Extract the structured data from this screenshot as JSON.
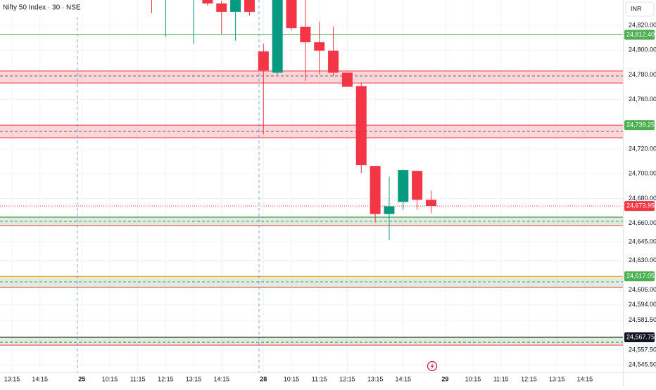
{
  "chart_data": {
    "type": "candlestick",
    "title": "Nifty 50 Index · 30 · NSE",
    "currency": "INR",
    "up_color": "#089981",
    "down_color": "#f23645",
    "ylim": [
      24539.3,
      24840.5
    ],
    "yticks": [
      {
        "value": 24820,
        "label": "24,820.00"
      },
      {
        "value": 24800,
        "label": "24,800.00"
      },
      {
        "value": 24780,
        "label": "24,780.00"
      },
      {
        "value": 24760,
        "label": "24,760.00"
      },
      {
        "value": 24720,
        "label": "24,720.00"
      },
      {
        "value": 24700,
        "label": "24,700.00"
      },
      {
        "value": 24680,
        "label": "24,680.00"
      },
      {
        "value": 24660,
        "label": "24,660.00"
      },
      {
        "value": 24645,
        "label": "24,645.00"
      },
      {
        "value": 24630,
        "label": "24,630.00"
      },
      {
        "value": 24606,
        "label": "24,606.00"
      },
      {
        "value": 24594,
        "label": "24,594.00"
      },
      {
        "value": 24581.5,
        "label": "24,581.50"
      },
      {
        "value": 24557.5,
        "label": "24,557.50"
      },
      {
        "value": 24545.5,
        "label": "24,545.50"
      }
    ],
    "grid": true,
    "categories": [
      "13:15",
      null,
      "14:15",
      null,
      null,
      "25",
      null,
      "10:15",
      null,
      "11:15",
      null,
      "12:15",
      null,
      "13:15",
      null,
      "14:15",
      null,
      null,
      "28",
      null,
      "10:15",
      null,
      "11:15",
      null,
      "12:15",
      null,
      "13:15",
      null,
      "14:15",
      null,
      null,
      "29",
      null,
      "10:15",
      null,
      "11:15",
      null,
      "12:15",
      null,
      "13:15",
      null,
      "14:15",
      null,
      null
    ],
    "open": [
      null,
      null,
      null,
      null,
      null,
      null,
      null,
      null,
      null,
      null,
      24848,
      24845,
      24860,
      24842,
      24845,
      24837.7,
      24830.9,
      24842,
      24798.9,
      24781.7,
      24845,
      24818.9,
      24806.3,
      24799.5,
      24781.7,
      24770.9,
      24706.3,
      24667.4,
      24677.2,
      24702.3,
      24678.9,
      null,
      null,
      null,
      null,
      null,
      null,
      null,
      null,
      null,
      null,
      null,
      null,
      null
    ],
    "high": [
      null,
      null,
      null,
      null,
      null,
      null,
      null,
      null,
      null,
      null,
      24852,
      24855,
      24865,
      24858,
      24850,
      24840,
      24846,
      24848,
      24805,
      24850,
      24850,
      24841,
      24823,
      24819,
      24781.7,
      24773.2,
      24706.3,
      24697.7,
      24703.5,
      24702.3,
      24686.3,
      null,
      null,
      null,
      null,
      null,
      null,
      null,
      null,
      null,
      null,
      null,
      null,
      null
    ],
    "low": [
      null,
      null,
      null,
      null,
      null,
      null,
      null,
      null,
      null,
      null,
      24830,
      24811,
      24845,
      24805,
      24836,
      24813.2,
      24807.5,
      24828,
      24732,
      24780,
      24816,
      24774.9,
      24780.6,
      24778.9,
      24770.3,
      24700.6,
      24660.6,
      24646.3,
      24670.9,
      24670.9,
      24668,
      null,
      null,
      null,
      null,
      null,
      null,
      null,
      null,
      null,
      null,
      null,
      null,
      null
    ],
    "close": [
      null,
      null,
      null,
      null,
      null,
      null,
      null,
      null,
      null,
      null,
      24843,
      24850,
      24855,
      24850,
      24837.7,
      24830.9,
      24842,
      24830.9,
      24783.5,
      24845,
      24817.7,
      24806.3,
      24799.5,
      24781.7,
      24770.3,
      24706.9,
      24667.4,
      24673.7,
      24702.9,
      24678.9,
      24673.95,
      null,
      null,
      null,
      null,
      null,
      null,
      null,
      null,
      null,
      null,
      null,
      null,
      null
    ],
    "zones": [
      {
        "top": 24783.1,
        "bottom": 24773.4,
        "mid": 24779.1,
        "fill": "rgba(242,54,69,0.2)",
        "top_color": "#f23645",
        "bottom_color": "#f23645"
      },
      {
        "top": 24739.25,
        "bottom": 24729.1,
        "mid": 24734.2,
        "fill": "rgba(242,54,69,0.2)",
        "top_color": "#f23645",
        "bottom_color": "#f23645"
      },
      {
        "top": 24664.9,
        "bottom": 24658.1,
        "mid": 24661.5,
        "fill": "rgba(76,175,80,0.2)",
        "top_color": "#2e7d32",
        "bottom_color": "#f23645"
      },
      {
        "top": 24617.05,
        "bottom": 24608.1,
        "mid": 24612.6,
        "fill": "rgba(76,175,80,0.2)",
        "top_color": "#ff9800",
        "bottom_color": "#f23645"
      },
      {
        "top": 24567.75,
        "bottom": 24561.4,
        "mid": 24563.7,
        "fill": "rgba(76,175,80,0.2)",
        "top_color": "#000000",
        "bottom_color": "#f23645"
      }
    ],
    "price_labels": [
      {
        "value": 24812.4,
        "label": "24,812.40",
        "color": "#4caf50",
        "line": "solid"
      },
      {
        "value": 24739.25,
        "label": "24,739.25",
        "color": "#4caf50",
        "line": "none"
      },
      {
        "value": 24673.95,
        "label": "24,673.95",
        "color": "#f23645",
        "line": "dotted"
      },
      {
        "value": 24617.05,
        "label": "24,617.05",
        "color": "#4caf50",
        "line": "none"
      },
      {
        "value": 24567.75,
        "label": "24,567.75",
        "color": "#131722",
        "line": "none"
      }
    ]
  }
}
